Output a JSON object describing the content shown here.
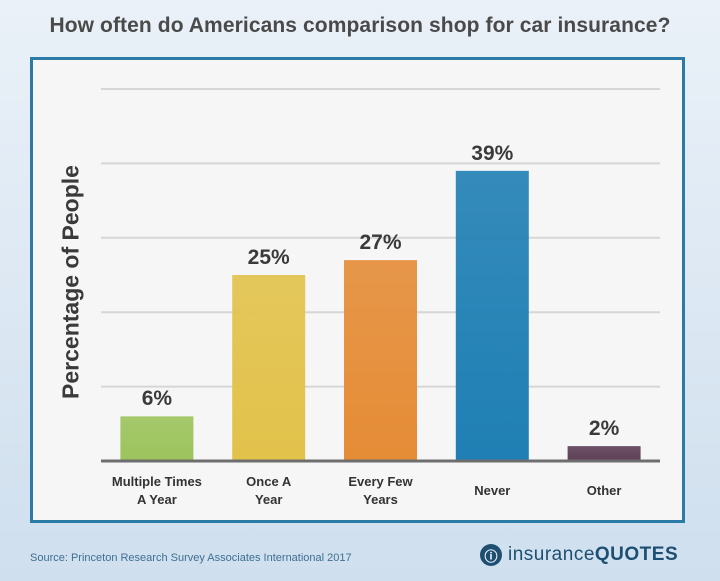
{
  "title": "How often do Americans comparison shop for car insurance?",
  "source": "Source: Princeton Research Survey Associates International 2017",
  "brand": {
    "part1": "insurance",
    "part2": "QUOTES",
    "icon": "brand-logo-icon"
  },
  "chart_data": {
    "type": "bar",
    "title": "How often do Americans comparison shop for car insurance?",
    "xlabel": "",
    "ylabel": "Percentage of People",
    "ylim": [
      0,
      50
    ],
    "grid": true,
    "categories": [
      "Multiple Times\nA Year",
      "Once A\nYear",
      "Every Few\nYears",
      "Never",
      "Other"
    ],
    "values": [
      6,
      25,
      27,
      39,
      2
    ],
    "value_labels": [
      "6%",
      "25%",
      "27%",
      "39%",
      "2%"
    ],
    "colors": [
      "#9cc35c",
      "#e2c24a",
      "#e58c36",
      "#1f7fb4",
      "#5e3f56"
    ]
  }
}
